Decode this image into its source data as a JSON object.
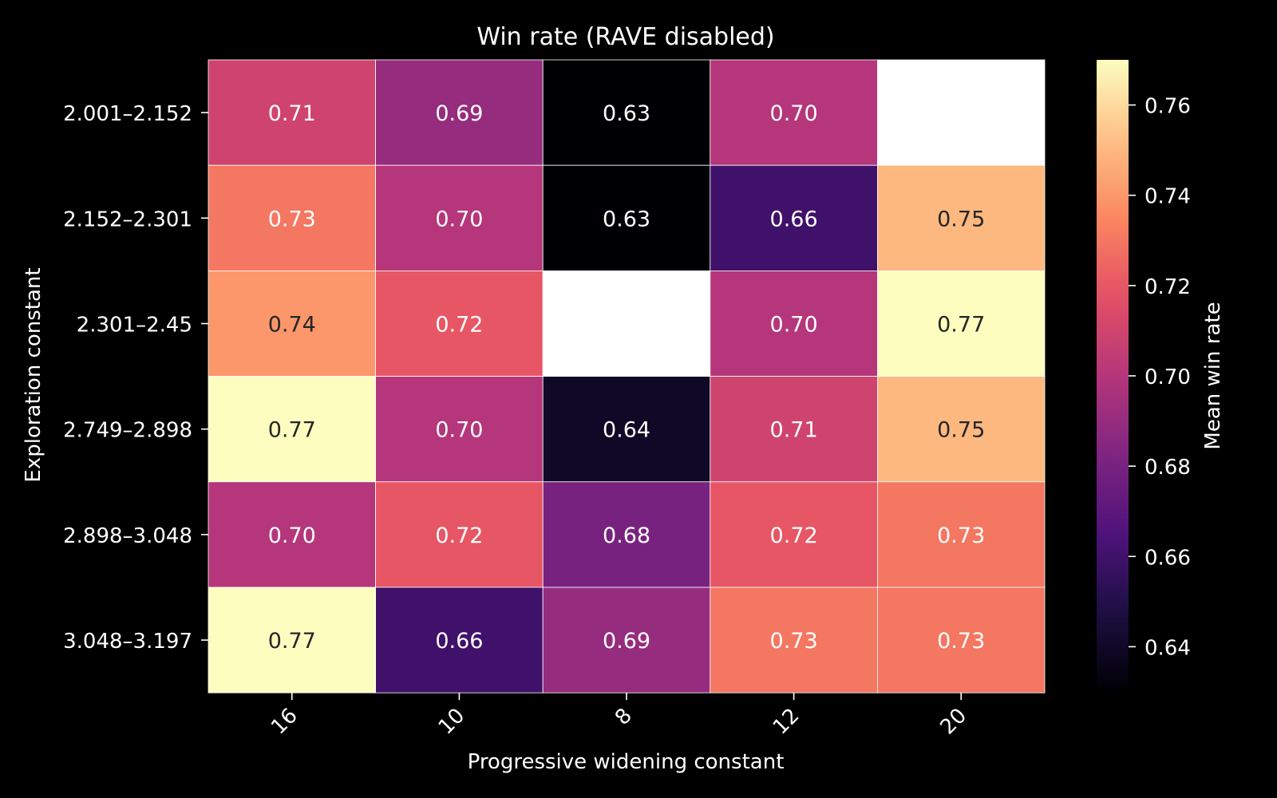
{
  "chart_data": {
    "type": "heatmap",
    "title": "Win rate (RAVE disabled)",
    "xlabel": "Progressive widening constant",
    "ylabel": "Exploration constant",
    "x_categories": [
      "16",
      "10",
      "8",
      "12",
      "20"
    ],
    "y_categories": [
      "2.001–2.152",
      "2.152–2.301",
      "2.301–2.45",
      "2.749–2.898",
      "2.898–3.048",
      "3.048–3.197"
    ],
    "values": [
      [
        0.71,
        0.69,
        0.63,
        0.7,
        null
      ],
      [
        0.73,
        0.7,
        0.63,
        0.66,
        0.75
      ],
      [
        0.74,
        0.72,
        null,
        0.7,
        0.77
      ],
      [
        0.77,
        0.7,
        0.64,
        0.71,
        0.75
      ],
      [
        0.7,
        0.72,
        0.68,
        0.72,
        0.73
      ],
      [
        0.77,
        0.66,
        0.69,
        0.73,
        0.73
      ]
    ],
    "value_format": "0.00",
    "missing_color": "#ffffff",
    "colorbar": {
      "label": "Mean win rate",
      "colormap": "magma",
      "range": [
        0.63,
        0.77
      ],
      "ticks": [
        "0.64",
        "0.66",
        "0.68",
        "0.70",
        "0.72",
        "0.74",
        "0.76"
      ]
    },
    "grid": true,
    "x_tick_rotation": "45deg"
  }
}
